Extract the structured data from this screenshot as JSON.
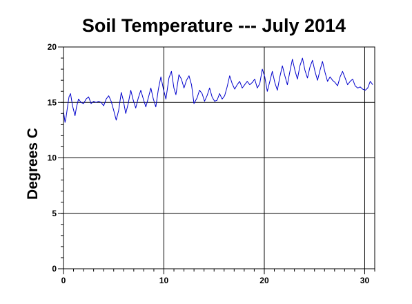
{
  "chart_data": {
    "type": "line",
    "title": "Soil Temperature --- July 2014",
    "xlabel": "",
    "ylabel": "Degrees C",
    "xlim": [
      0,
      31
    ],
    "ylim": [
      0,
      20
    ],
    "xticks": [
      0,
      10,
      20,
      30
    ],
    "yticks": [
      0,
      5,
      10,
      15,
      20
    ],
    "grid": true,
    "line_color": "#0000cc",
    "series": [
      {
        "name": "",
        "points": [
          [
            0.0,
            14.2
          ],
          [
            0.15,
            13.2
          ],
          [
            0.25,
            13.6
          ],
          [
            0.45,
            14.9
          ],
          [
            0.55,
            15.5
          ],
          [
            0.7,
            15.8
          ],
          [
            0.9,
            14.7
          ],
          [
            1.15,
            13.8
          ],
          [
            1.3,
            14.6
          ],
          [
            1.5,
            15.3
          ],
          [
            1.75,
            15.0
          ],
          [
            2.0,
            14.9
          ],
          [
            2.25,
            15.3
          ],
          [
            2.5,
            15.5
          ],
          [
            2.75,
            14.9
          ],
          [
            3.0,
            15.1
          ],
          [
            3.25,
            15.0
          ],
          [
            3.5,
            15.1
          ],
          [
            3.75,
            15.0
          ],
          [
            4.0,
            14.7
          ],
          [
            4.25,
            15.3
          ],
          [
            4.5,
            15.6
          ],
          [
            4.75,
            15.1
          ],
          [
            5.0,
            14.3
          ],
          [
            5.25,
            13.4
          ],
          [
            5.5,
            14.3
          ],
          [
            5.75,
            15.9
          ],
          [
            5.95,
            15.2
          ],
          [
            6.2,
            14.0
          ],
          [
            6.45,
            14.9
          ],
          [
            6.7,
            16.1
          ],
          [
            6.95,
            15.2
          ],
          [
            7.2,
            14.5
          ],
          [
            7.45,
            15.4
          ],
          [
            7.7,
            16.1
          ],
          [
            7.95,
            15.3
          ],
          [
            8.2,
            14.6
          ],
          [
            8.45,
            15.4
          ],
          [
            8.7,
            16.3
          ],
          [
            8.95,
            15.3
          ],
          [
            9.2,
            14.6
          ],
          [
            9.45,
            16.2
          ],
          [
            9.7,
            17.3
          ],
          [
            9.95,
            16.2
          ],
          [
            10.2,
            15.3
          ],
          [
            10.5,
            17.2
          ],
          [
            10.75,
            17.8
          ],
          [
            11.0,
            16.3
          ],
          [
            11.2,
            15.7
          ],
          [
            11.5,
            17.5
          ],
          [
            11.75,
            17.1
          ],
          [
            12.0,
            16.3
          ],
          [
            12.25,
            17.0
          ],
          [
            12.5,
            17.4
          ],
          [
            12.75,
            16.6
          ],
          [
            13.0,
            14.9
          ],
          [
            13.3,
            15.4
          ],
          [
            13.55,
            16.1
          ],
          [
            13.8,
            15.8
          ],
          [
            14.05,
            15.1
          ],
          [
            14.3,
            15.6
          ],
          [
            14.55,
            16.3
          ],
          [
            14.8,
            15.5
          ],
          [
            15.05,
            15.1
          ],
          [
            15.3,
            15.2
          ],
          [
            15.55,
            15.8
          ],
          [
            15.8,
            15.3
          ],
          [
            16.05,
            15.6
          ],
          [
            16.3,
            16.4
          ],
          [
            16.55,
            17.4
          ],
          [
            16.8,
            16.7
          ],
          [
            17.05,
            16.2
          ],
          [
            17.3,
            16.6
          ],
          [
            17.55,
            16.9
          ],
          [
            17.8,
            16.3
          ],
          [
            18.05,
            16.6
          ],
          [
            18.3,
            16.9
          ],
          [
            18.55,
            16.6
          ],
          [
            18.8,
            16.8
          ],
          [
            19.05,
            17.1
          ],
          [
            19.3,
            16.3
          ],
          [
            19.55,
            16.7
          ],
          [
            19.8,
            18.0
          ],
          [
            20.05,
            17.3
          ],
          [
            20.3,
            16.0
          ],
          [
            20.55,
            16.9
          ],
          [
            20.8,
            17.8
          ],
          [
            21.05,
            16.8
          ],
          [
            21.3,
            16.1
          ],
          [
            21.55,
            17.3
          ],
          [
            21.8,
            18.3
          ],
          [
            22.05,
            17.4
          ],
          [
            22.3,
            16.6
          ],
          [
            22.55,
            17.8
          ],
          [
            22.8,
            18.9
          ],
          [
            23.05,
            17.9
          ],
          [
            23.3,
            17.1
          ],
          [
            23.55,
            18.3
          ],
          [
            23.8,
            19.0
          ],
          [
            24.05,
            17.9
          ],
          [
            24.3,
            17.2
          ],
          [
            24.55,
            18.2
          ],
          [
            24.8,
            18.8
          ],
          [
            25.05,
            17.8
          ],
          [
            25.3,
            17.0
          ],
          [
            25.55,
            17.9
          ],
          [
            25.8,
            18.7
          ],
          [
            26.05,
            17.7
          ],
          [
            26.3,
            16.9
          ],
          [
            26.55,
            17.3
          ],
          [
            26.8,
            17.0
          ],
          [
            27.05,
            16.8
          ],
          [
            27.3,
            16.5
          ],
          [
            27.55,
            17.3
          ],
          [
            27.8,
            17.8
          ],
          [
            28.05,
            17.2
          ],
          [
            28.3,
            16.6
          ],
          [
            28.55,
            16.9
          ],
          [
            28.8,
            17.1
          ],
          [
            29.05,
            16.5
          ],
          [
            29.3,
            16.3
          ],
          [
            29.55,
            16.4
          ],
          [
            29.8,
            16.2
          ],
          [
            30.05,
            16.1
          ],
          [
            30.3,
            16.3
          ],
          [
            30.55,
            16.9
          ],
          [
            30.8,
            16.6
          ]
        ]
      }
    ]
  }
}
